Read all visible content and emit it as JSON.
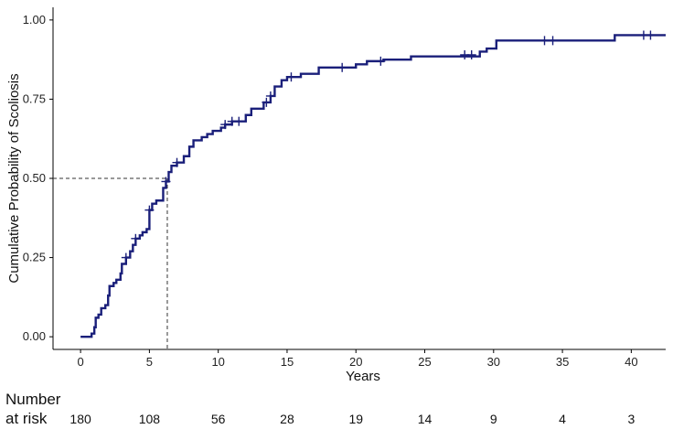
{
  "chart_data": {
    "type": "line",
    "title": "",
    "xlabel": "Years",
    "ylabel": "Cumulative Probability of Scoliosis",
    "xlim": [
      -2.0,
      42.5
    ],
    "ylim": [
      -0.04,
      1.04
    ],
    "x_ticks": [
      0,
      5,
      10,
      15,
      20,
      25,
      30,
      35,
      40
    ],
    "x_tick_labels": [
      "0",
      "5",
      "10",
      "15",
      "20",
      "25",
      "30",
      "35",
      "40"
    ],
    "y_ticks": [
      0,
      0.25,
      0.5,
      0.75,
      1.0
    ],
    "y_tick_labels": [
      "0.00",
      "0.25",
      "0.50",
      "0.75",
      "1.00"
    ],
    "grid": false,
    "line_color": "#1a1f7a",
    "series": [
      {
        "step_curve": [
          [
            0.0,
            0.0
          ],
          [
            0.8,
            0.01
          ],
          [
            1.0,
            0.03
          ],
          [
            1.1,
            0.06
          ],
          [
            1.3,
            0.07
          ],
          [
            1.5,
            0.09
          ],
          [
            1.8,
            0.1
          ],
          [
            2.0,
            0.13
          ],
          [
            2.1,
            0.16
          ],
          [
            2.4,
            0.17
          ],
          [
            2.6,
            0.18
          ],
          [
            2.9,
            0.2
          ],
          [
            3.0,
            0.23
          ],
          [
            3.3,
            0.25
          ],
          [
            3.6,
            0.27
          ],
          [
            3.8,
            0.29
          ],
          [
            4.0,
            0.31
          ],
          [
            4.3,
            0.32
          ],
          [
            4.5,
            0.33
          ],
          [
            4.8,
            0.34
          ],
          [
            5.0,
            0.4
          ],
          [
            5.2,
            0.42
          ],
          [
            5.5,
            0.43
          ],
          [
            6.0,
            0.47
          ],
          [
            6.2,
            0.49
          ],
          [
            6.4,
            0.52
          ],
          [
            6.6,
            0.54
          ],
          [
            7.0,
            0.55
          ],
          [
            7.5,
            0.57
          ],
          [
            7.9,
            0.6
          ],
          [
            8.2,
            0.62
          ],
          [
            8.8,
            0.63
          ],
          [
            9.2,
            0.64
          ],
          [
            9.6,
            0.65
          ],
          [
            10.2,
            0.66
          ],
          [
            10.5,
            0.67
          ],
          [
            11.0,
            0.68
          ],
          [
            12.0,
            0.7
          ],
          [
            12.4,
            0.72
          ],
          [
            13.0,
            0.72
          ],
          [
            13.3,
            0.74
          ],
          [
            13.8,
            0.76
          ],
          [
            14.1,
            0.79
          ],
          [
            14.6,
            0.81
          ],
          [
            15.0,
            0.82
          ],
          [
            16.0,
            0.83
          ],
          [
            17.3,
            0.85
          ],
          [
            20.0,
            0.86
          ],
          [
            20.8,
            0.87
          ],
          [
            22.0,
            0.875
          ],
          [
            24.0,
            0.885
          ],
          [
            29.0,
            0.9
          ],
          [
            29.5,
            0.91
          ],
          [
            30.2,
            0.935
          ],
          [
            38.8,
            0.952
          ],
          [
            42.5,
            0.952
          ]
        ],
        "censor_marks": [
          [
            3.3,
            0.25
          ],
          [
            4.0,
            0.31
          ],
          [
            5.0,
            0.4
          ],
          [
            6.2,
            0.49
          ],
          [
            7.0,
            0.55
          ],
          [
            10.5,
            0.67
          ],
          [
            11.0,
            0.68
          ],
          [
            11.5,
            0.68
          ],
          [
            13.5,
            0.74
          ],
          [
            13.8,
            0.76
          ],
          [
            15.3,
            0.82
          ],
          [
            19.0,
            0.85
          ],
          [
            21.8,
            0.87
          ],
          [
            27.9,
            0.89
          ],
          [
            28.4,
            0.89
          ],
          [
            33.7,
            0.935
          ],
          [
            34.3,
            0.935
          ],
          [
            40.9,
            0.952
          ],
          [
            41.4,
            0.952
          ]
        ]
      }
    ],
    "annotations": {
      "median_x": 6.3,
      "median_y": 0.5
    },
    "number_at_risk": {
      "heading_line1": "Number",
      "heading_line2": "at risk",
      "times": [
        0,
        5,
        10,
        15,
        20,
        25,
        30,
        35,
        40
      ],
      "counts": [
        "180",
        "108",
        "56",
        "28",
        "19",
        "14",
        "9",
        "4",
        "3"
      ]
    }
  }
}
